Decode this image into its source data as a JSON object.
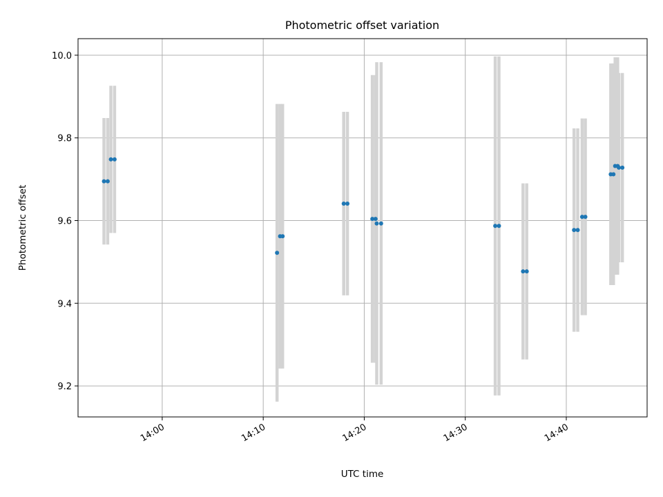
{
  "chart_data": {
    "type": "scatter",
    "title": "Photometric offset variation",
    "xlabel": "UTC time",
    "ylabel": "Photometric offset",
    "x_range": [
      "13:51:40",
      "14:48:00"
    ],
    "ylim": [
      9.125,
      10.04
    ],
    "x_ticks": [
      "14:00",
      "14:10",
      "14:20",
      "14:30",
      "14:40"
    ],
    "y_ticks": [
      9.2,
      9.4,
      9.6,
      9.8,
      10.0
    ],
    "grid": true,
    "colors": {
      "marker": "#1f77b4",
      "errorbar": "#d3d3d3",
      "grid": "#b0b0b0"
    },
    "points": [
      {
        "t": "13:54:14",
        "y": 9.695,
        "err": 0.153
      },
      {
        "t": "13:54:36",
        "y": 9.695,
        "err": 0.153
      },
      {
        "t": "13:54:55",
        "y": 9.748,
        "err": 0.178
      },
      {
        "t": "13:55:17",
        "y": 9.748,
        "err": 0.178
      },
      {
        "t": "14:11:22",
        "y": 9.522,
        "err": 0.36
      },
      {
        "t": "14:11:40",
        "y": 9.562,
        "err": 0.32
      },
      {
        "t": "14:11:55",
        "y": 9.562,
        "err": 0.32
      },
      {
        "t": "14:17:58",
        "y": 9.641,
        "err": 0.222
      },
      {
        "t": "14:18:20",
        "y": 9.641,
        "err": 0.222
      },
      {
        "t": "14:20:48",
        "y": 9.604,
        "err": 0.348
      },
      {
        "t": "14:21:07",
        "y": 9.604,
        "err": 0.348
      },
      {
        "t": "14:21:14",
        "y": 9.593,
        "err": 0.39
      },
      {
        "t": "14:21:40",
        "y": 9.593,
        "err": 0.39
      },
      {
        "t": "14:32:58",
        "y": 9.587,
        "err": 0.41
      },
      {
        "t": "14:33:20",
        "y": 9.587,
        "err": 0.41
      },
      {
        "t": "14:35:43",
        "y": 9.477,
        "err": 0.213
      },
      {
        "t": "14:36:05",
        "y": 9.477,
        "err": 0.213
      },
      {
        "t": "14:40:46",
        "y": 9.577,
        "err": 0.246
      },
      {
        "t": "14:41:08",
        "y": 9.577,
        "err": 0.246
      },
      {
        "t": "14:41:34",
        "y": 9.609,
        "err": 0.238
      },
      {
        "t": "14:41:53",
        "y": 9.609,
        "err": 0.238
      },
      {
        "t": "14:44:24",
        "y": 9.712,
        "err": 0.268
      },
      {
        "t": "14:44:40",
        "y": 9.712,
        "err": 0.268
      },
      {
        "t": "14:44:50",
        "y": 9.732,
        "err": 0.263
      },
      {
        "t": "14:45:05",
        "y": 9.732,
        "err": 0.263
      },
      {
        "t": "14:45:12",
        "y": 9.728,
        "err": 0.229
      },
      {
        "t": "14:45:33",
        "y": 9.728,
        "err": 0.229
      }
    ]
  }
}
